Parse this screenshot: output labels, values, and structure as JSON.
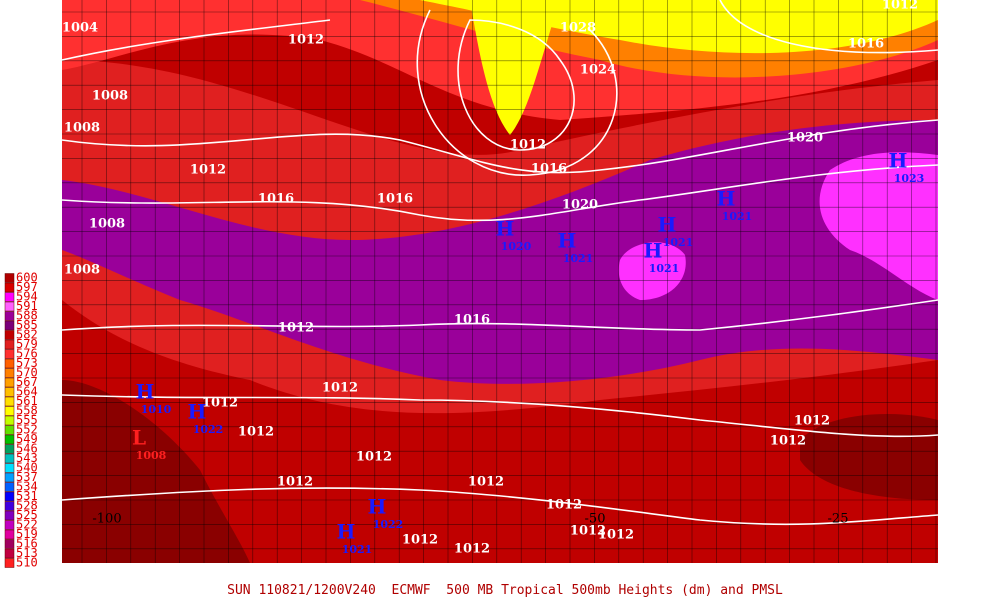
{
  "legend": [
    {
      "label": "600",
      "color": "#b00000"
    },
    {
      "label": "597",
      "color": "#d80000"
    },
    {
      "label": "594",
      "color": "#ff00ff"
    },
    {
      "label": "591",
      "color": "#ff60ff"
    },
    {
      "label": "588",
      "color": "#9a009a"
    },
    {
      "label": "585",
      "color": "#7a007a"
    },
    {
      "label": "582",
      "color": "#c00000"
    },
    {
      "label": "579",
      "color": "#e02020"
    },
    {
      "label": "576",
      "color": "#ff3030"
    },
    {
      "label": "573",
      "color": "#ff6000"
    },
    {
      "label": "570",
      "color": "#ff8000"
    },
    {
      "label": "567",
      "color": "#ffa000"
    },
    {
      "label": "564",
      "color": "#ffc000"
    },
    {
      "label": "561",
      "color": "#ffe000"
    },
    {
      "label": "558",
      "color": "#ffff00"
    },
    {
      "label": "555",
      "color": "#c0ff00"
    },
    {
      "label": "552",
      "color": "#60e000"
    },
    {
      "label": "549",
      "color": "#00c000"
    },
    {
      "label": "546",
      "color": "#00a060"
    },
    {
      "label": "543",
      "color": "#00c0c0"
    },
    {
      "label": "540",
      "color": "#00e0ff"
    },
    {
      "label": "537",
      "color": "#00a0ff"
    },
    {
      "label": "534",
      "color": "#0060ff"
    },
    {
      "label": "531",
      "color": "#0000ff"
    },
    {
      "label": "528",
      "color": "#4000e0"
    },
    {
      "label": "525",
      "color": "#8000c0"
    },
    {
      "label": "522",
      "color": "#c000c0"
    },
    {
      "label": "519",
      "color": "#e000a0"
    },
    {
      "label": "516",
      "color": "#a00060"
    },
    {
      "label": "513",
      "color": "#c00040"
    },
    {
      "label": "510",
      "color": "#ff2020"
    }
  ],
  "isobar_labels": [
    "1004",
    "1008",
    "1008",
    "1012",
    "1028",
    "1024",
    "1016",
    "1012",
    "1020",
    "1012",
    "1016",
    "1012",
    "1016",
    "1016",
    "1020",
    "1008",
    "1008",
    "1012",
    "1016",
    "1012",
    "1012",
    "1012",
    "1012",
    "1012",
    "1012",
    "1012",
    "1012",
    "1012",
    "1012",
    "1012",
    "1012",
    "1012"
  ],
  "highs": [
    {
      "symbol": "H",
      "pressure": "1020"
    },
    {
      "symbol": "H",
      "pressure": "1021"
    },
    {
      "symbol": "H",
      "pressure": "1021"
    },
    {
      "symbol": "H",
      "pressure": "1021"
    },
    {
      "symbol": "H",
      "pressure": "1021"
    },
    {
      "symbol": "H",
      "pressure": "1023"
    },
    {
      "symbol": "H",
      "pressure": "1022"
    },
    {
      "symbol": "H",
      "pressure": "1022"
    },
    {
      "symbol": "H",
      "pressure": "1021"
    },
    {
      "symbol": "H",
      "pressure": "1010"
    }
  ],
  "lows": [
    {
      "symbol": "L",
      "pressure": "1008"
    }
  ],
  "longitude_labels": [
    "-100",
    "-50",
    "-25"
  ],
  "caption": "SUN 110821/1200V240  ECMWF  500 MB Tropical 500mb Heights (dm) and PMSL"
}
